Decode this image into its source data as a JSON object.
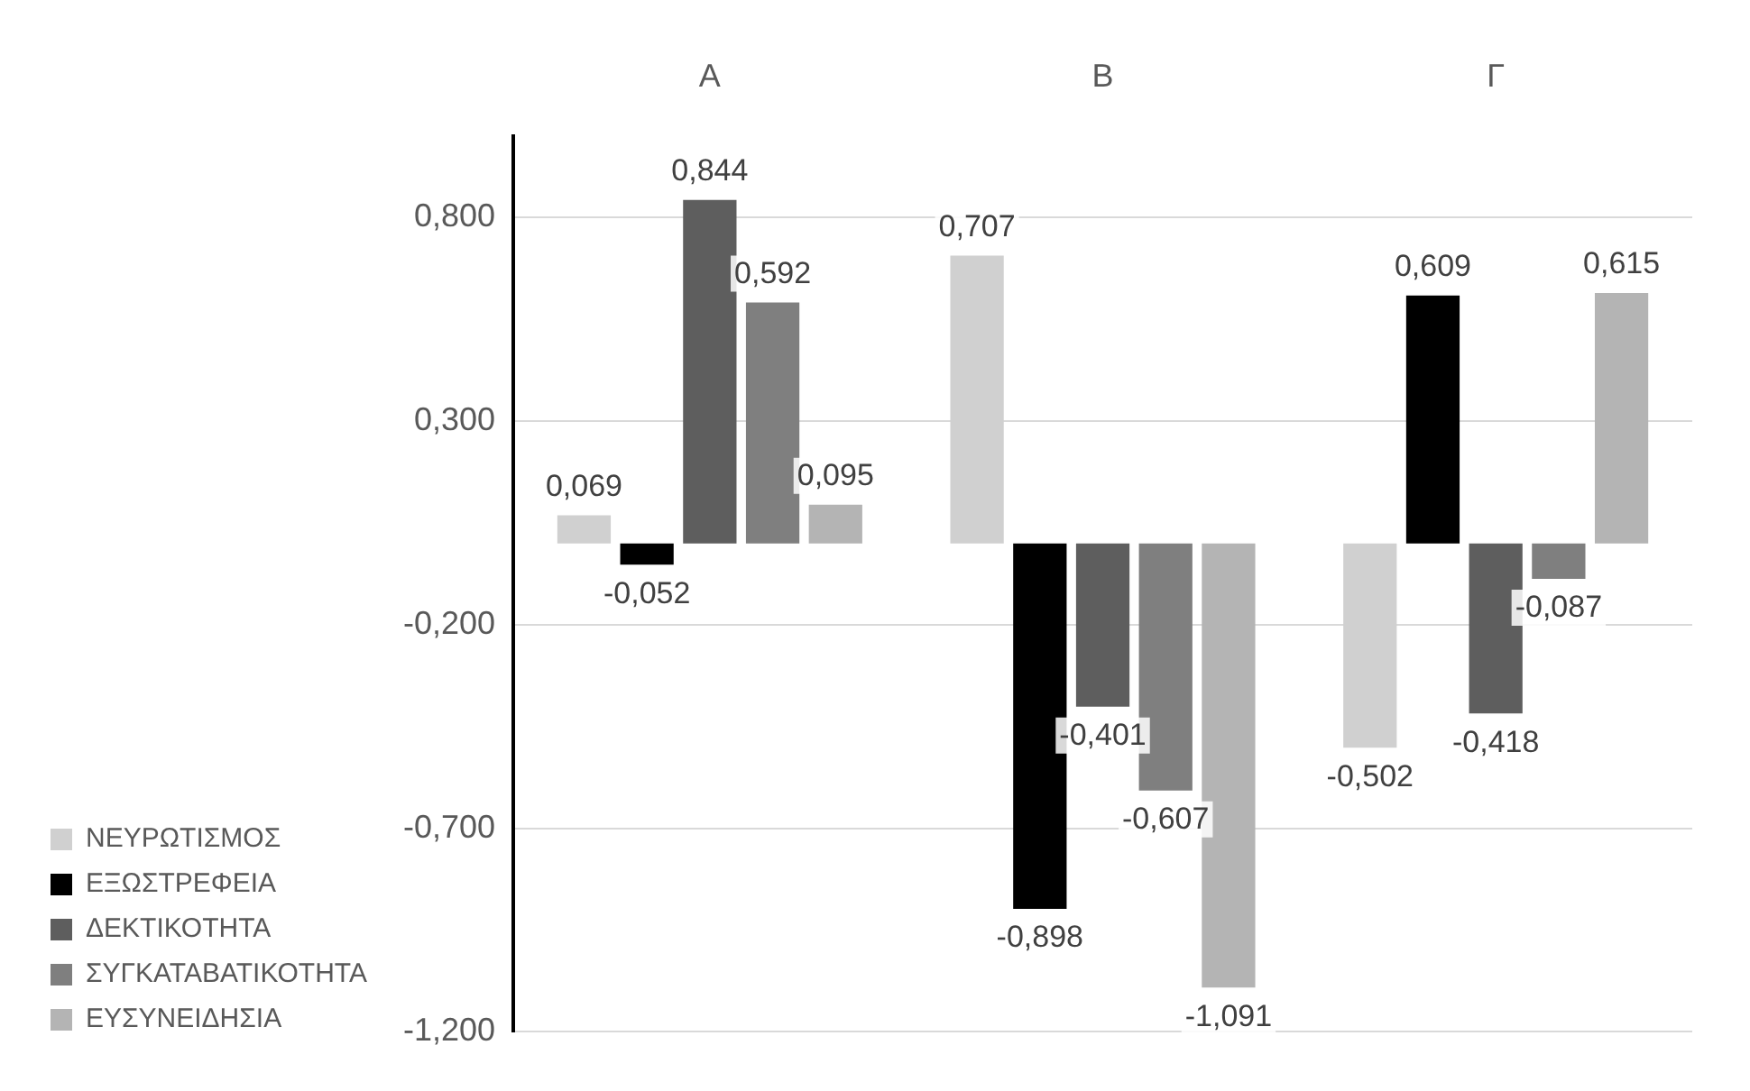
{
  "chart_data": {
    "type": "bar",
    "categories": [
      "A",
      "B",
      "Γ"
    ],
    "series": [
      {
        "name": "ΝΕΥΡΩΤΙΣΜΟΣ",
        "color": "#d0d0d0",
        "values": [
          0.069,
          0.707,
          -0.502
        ],
        "value_labels": [
          "0,069",
          "0,707",
          "-0,502"
        ]
      },
      {
        "name": "ΕΞΩΣΤΡΕΦΕΙΑ",
        "color": "#000000",
        "values": [
          -0.052,
          -0.898,
          0.609
        ],
        "value_labels": [
          "-0,052",
          "-0,898",
          "0,609"
        ]
      },
      {
        "name": "ΔΕΚΤΙΚΟΤΗΤΑ",
        "color": "#5e5e5e",
        "values": [
          0.844,
          -0.401,
          -0.418
        ],
        "value_labels": [
          "0,844",
          "-0,401",
          "-0,418"
        ]
      },
      {
        "name": "ΣΥΓΚΑΤΑΒΑΤΙΚΟΤΗΤΑ",
        "color": "#7f7f7f",
        "values": [
          0.592,
          -0.607,
          -0.087
        ],
        "value_labels": [
          "0,592",
          "-0,607",
          "-0,087"
        ]
      },
      {
        "name": "ΕΥΣΥΝΕΙΔΗΣΙΑ",
        "color": "#b4b4b4",
        "values": [
          0.095,
          -1.091,
          0.615
        ],
        "value_labels": [
          "0,095",
          "-1,091",
          "0,615"
        ]
      }
    ],
    "ylim": [
      -1.2,
      1.0
    ],
    "yticks": [
      {
        "value": -1.2,
        "label": "-1,200"
      },
      {
        "value": -0.7,
        "label": "-0,700"
      },
      {
        "value": -0.2,
        "label": "-0,200"
      },
      {
        "value": 0.3,
        "label": "0,300"
      },
      {
        "value": 0.8,
        "label": "0,800"
      }
    ],
    "grid": "y",
    "legend": "bottom left"
  }
}
